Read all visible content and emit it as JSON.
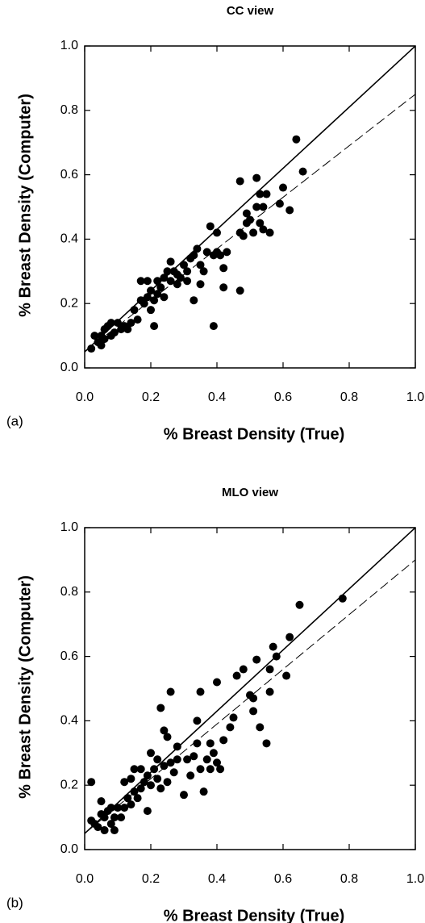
{
  "chart_data": [
    {
      "type": "scatter",
      "title": "CC view",
      "panel_label": "(a)",
      "xlabel": "% Breast Density (True)",
      "ylabel": "% Breast Density (Computer)",
      "xlim": [
        0,
        1
      ],
      "ylim": [
        0,
        1
      ],
      "xticks": [
        {
          "value": 0,
          "label": "0.0"
        },
        0.2,
        0.4,
        0.6,
        0.8,
        {
          "value": 1,
          "label": "1.0"
        }
      ],
      "yticks": [
        {
          "value": 0,
          "label": "0.0"
        },
        0.2,
        0.4,
        0.6,
        0.8,
        {
          "value": 1,
          "label": "1.0"
        }
      ],
      "color": "#000000",
      "x": [
        0.02,
        0.03,
        0.04,
        0.05,
        0.05,
        0.06,
        0.06,
        0.07,
        0.08,
        0.08,
        0.09,
        0.1,
        0.11,
        0.12,
        0.13,
        0.14,
        0.15,
        0.16,
        0.17,
        0.17,
        0.18,
        0.19,
        0.19,
        0.2,
        0.2,
        0.21,
        0.21,
        0.22,
        0.22,
        0.23,
        0.24,
        0.24,
        0.25,
        0.26,
        0.26,
        0.27,
        0.28,
        0.28,
        0.29,
        0.3,
        0.31,
        0.31,
        0.32,
        0.33,
        0.33,
        0.34,
        0.35,
        0.35,
        0.36,
        0.37,
        0.38,
        0.39,
        0.39,
        0.4,
        0.4,
        0.41,
        0.42,
        0.42,
        0.43,
        0.47,
        0.47,
        0.47,
        0.48,
        0.49,
        0.49,
        0.5,
        0.51,
        0.52,
        0.52,
        0.53,
        0.53,
        0.54,
        0.54,
        0.55,
        0.56,
        0.59,
        0.6,
        0.62,
        0.64,
        0.66
      ],
      "y": [
        0.06,
        0.1,
        0.08,
        0.1,
        0.07,
        0.09,
        0.12,
        0.13,
        0.1,
        0.14,
        0.11,
        0.14,
        0.12,
        0.13,
        0.12,
        0.14,
        0.18,
        0.15,
        0.21,
        0.27,
        0.2,
        0.27,
        0.22,
        0.18,
        0.24,
        0.13,
        0.21,
        0.23,
        0.27,
        0.25,
        0.22,
        0.28,
        0.3,
        0.33,
        0.27,
        0.3,
        0.26,
        0.29,
        0.28,
        0.32,
        0.27,
        0.3,
        0.34,
        0.21,
        0.35,
        0.37,
        0.32,
        0.26,
        0.3,
        0.36,
        0.44,
        0.13,
        0.35,
        0.36,
        0.42,
        0.35,
        0.25,
        0.31,
        0.36,
        0.24,
        0.42,
        0.58,
        0.41,
        0.45,
        0.48,
        0.46,
        0.42,
        0.5,
        0.59,
        0.45,
        0.54,
        0.43,
        0.5,
        0.54,
        0.42,
        0.51,
        0.56,
        0.49,
        0.71,
        0.61
      ],
      "lines": [
        {
          "style": "solid",
          "x": [
            0,
            1
          ],
          "y": [
            0.05,
            1
          ]
        },
        {
          "style": "dashed",
          "x": [
            0,
            1
          ],
          "y": [
            0.05,
            0.85
          ]
        }
      ]
    },
    {
      "type": "scatter",
      "title": "MLO view",
      "panel_label": "(b)",
      "xlabel": "% Breast Density (True)",
      "ylabel": "% Breast Density (Computer)",
      "xlim": [
        0,
        1
      ],
      "ylim": [
        0,
        1
      ],
      "xticks": [
        {
          "value": 0,
          "label": "0.0"
        },
        0.2,
        0.4,
        0.6,
        0.8,
        {
          "value": 1,
          "label": "1.0"
        }
      ],
      "yticks": [
        {
          "value": 0,
          "label": "0.0"
        },
        0.2,
        0.4,
        0.6,
        0.8,
        {
          "value": 1,
          "label": "1.0"
        }
      ],
      "color": "#000000",
      "x": [
        0.02,
        0.02,
        0.03,
        0.04,
        0.05,
        0.05,
        0.06,
        0.06,
        0.07,
        0.08,
        0.08,
        0.09,
        0.09,
        0.1,
        0.11,
        0.12,
        0.12,
        0.13,
        0.14,
        0.14,
        0.15,
        0.15,
        0.16,
        0.17,
        0.17,
        0.18,
        0.19,
        0.19,
        0.2,
        0.2,
        0.21,
        0.22,
        0.22,
        0.23,
        0.23,
        0.24,
        0.24,
        0.25,
        0.25,
        0.26,
        0.26,
        0.27,
        0.28,
        0.28,
        0.3,
        0.31,
        0.32,
        0.33,
        0.34,
        0.34,
        0.35,
        0.35,
        0.36,
        0.37,
        0.38,
        0.38,
        0.39,
        0.4,
        0.4,
        0.41,
        0.42,
        0.44,
        0.45,
        0.46,
        0.48,
        0.5,
        0.51,
        0.51,
        0.52,
        0.53,
        0.55,
        0.56,
        0.56,
        0.57,
        0.58,
        0.61,
        0.62,
        0.65,
        0.78
      ],
      "y": [
        0.21,
        0.09,
        0.08,
        0.07,
        0.11,
        0.15,
        0.06,
        0.1,
        0.12,
        0.08,
        0.13,
        0.06,
        0.1,
        0.13,
        0.1,
        0.21,
        0.13,
        0.16,
        0.22,
        0.14,
        0.18,
        0.25,
        0.16,
        0.25,
        0.19,
        0.21,
        0.12,
        0.23,
        0.3,
        0.2,
        0.25,
        0.22,
        0.28,
        0.44,
        0.19,
        0.37,
        0.26,
        0.21,
        0.35,
        0.49,
        0.27,
        0.24,
        0.32,
        0.28,
        0.17,
        0.28,
        0.23,
        0.29,
        0.4,
        0.33,
        0.49,
        0.25,
        0.18,
        0.28,
        0.33,
        0.25,
        0.3,
        0.52,
        0.27,
        0.25,
        0.34,
        0.38,
        0.41,
        0.54,
        0.56,
        0.48,
        0.47,
        0.43,
        0.59,
        0.38,
        0.33,
        0.56,
        0.49,
        0.63,
        0.6,
        0.54,
        0.66,
        0.76,
        0.78
      ],
      "lines": [
        {
          "style": "solid",
          "x": [
            0,
            1
          ],
          "y": [
            0.05,
            1
          ]
        },
        {
          "style": "dashed",
          "x": [
            0,
            1
          ],
          "y": [
            0.05,
            0.9
          ]
        }
      ]
    }
  ]
}
